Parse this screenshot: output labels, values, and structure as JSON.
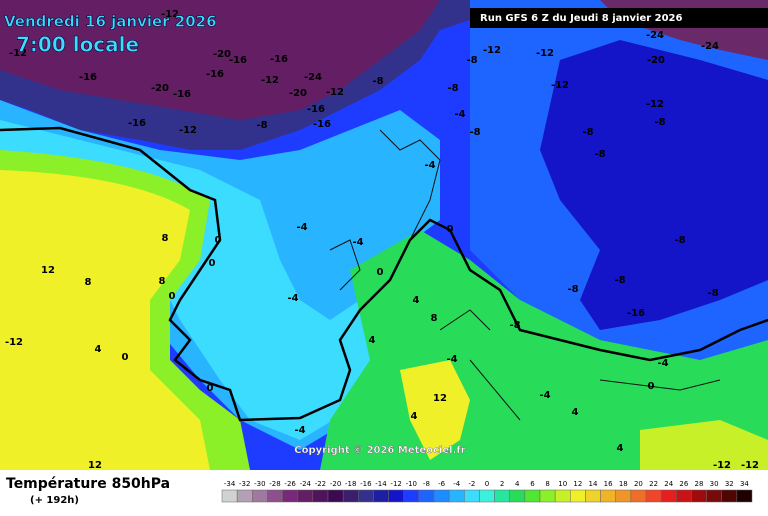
{
  "header": {
    "date": "Vendredi 16 janvier 2026",
    "time": "7:00 locale",
    "run": "Run GFS 6 Z du Jeudi 8 janvier 2026"
  },
  "footer": {
    "title": "Température 850hPa",
    "lead": "(+ 192h)",
    "copyright": "Copyright © 2026 Meteociel.fr"
  },
  "legend": {
    "values": [
      -34,
      -32,
      -30,
      -28,
      -26,
      -24,
      -22,
      -20,
      -18,
      -16,
      -14,
      -12,
      -10,
      -8,
      -6,
      -4,
      -2,
      0,
      2,
      4,
      6,
      8,
      10,
      12,
      14,
      16,
      18,
      20,
      22,
      24,
      26,
      28,
      30,
      32,
      34
    ],
    "colors": [
      "#d2d2d2",
      "#b4a0b4",
      "#a078a0",
      "#8c508c",
      "#782878",
      "#641e64",
      "#50145a",
      "#3c0a50",
      "#3c1e6e",
      "#32328c",
      "#1e1ea0",
      "#1414c8",
      "#1e3cff",
      "#1e64ff",
      "#1e8cff",
      "#28b4ff",
      "#3cdcff",
      "#3cf0dc",
      "#28e6a0",
      "#28dc5a",
      "#50e632",
      "#8cf028",
      "#c8f028",
      "#f0f028",
      "#f0d228",
      "#f0b428",
      "#f09628",
      "#f06e28",
      "#f04628",
      "#e61e1e",
      "#c81414",
      "#a00a0a",
      "#780a0a",
      "#500505",
      "#1e0000"
    ]
  },
  "map_labels": [
    -12,
    -16,
    -20,
    -16,
    -16,
    -16,
    -20,
    -12,
    -16,
    -24,
    -20,
    -16,
    -8,
    -12,
    -16,
    -16,
    -12,
    -8,
    -8,
    -8,
    -12,
    -12,
    -12,
    -24,
    -24,
    -20,
    -12,
    -8,
    -8,
    -8,
    -4,
    -8,
    -4,
    -4,
    -4,
    -4,
    0,
    0,
    0,
    0,
    0,
    4,
    8,
    8,
    8,
    12,
    12,
    -12,
    8,
    4,
    4,
    4,
    4,
    4,
    -4,
    -8,
    -8,
    -8,
    -16,
    -8,
    -4,
    0,
    -12,
    -12,
    0,
    0,
    -4,
    12,
    -4,
    -8,
    -12
  ]
}
